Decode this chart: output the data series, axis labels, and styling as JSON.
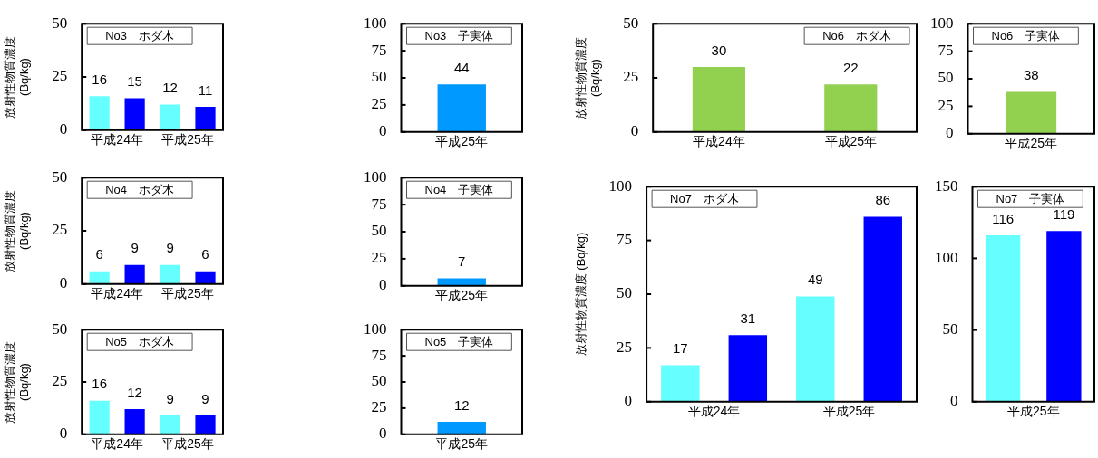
{
  "chart_data": [
    {
      "type": "bar",
      "title": "No3　ホダ木",
      "ylabel": "放射性物質濃度\n(Bq/kg)",
      "categories": [
        "平成24年",
        "平成25年"
      ],
      "series": [
        {
          "color": "#66ffff",
          "values": [
            16,
            12
          ]
        },
        {
          "color": "#0000ff",
          "values": [
            15,
            11
          ]
        }
      ],
      "ylim": [
        0,
        50
      ],
      "yticks": [
        0,
        25,
        50
      ],
      "data_labels": true,
      "grid": false,
      "legend": false
    },
    {
      "type": "bar",
      "title": "No3　子実体",
      "categories": [
        "平成25年"
      ],
      "series": [
        {
          "color": "#0099ff",
          "values": [
            44
          ]
        }
      ],
      "ylim": [
        0,
        100
      ],
      "yticks": [
        0,
        25,
        50,
        75,
        100
      ],
      "data_labels": true,
      "grid": false,
      "legend": false
    },
    {
      "type": "bar",
      "title": "No6　ホダ木",
      "ylabel": "放射性物質濃度\n(Bq/kg)",
      "categories": [
        "平成24年",
        "平成25年"
      ],
      "series": [
        {
          "color": "#92d050",
          "values": [
            30,
            22
          ]
        }
      ],
      "ylim": [
        0,
        50
      ],
      "yticks": [
        0,
        25,
        50
      ],
      "data_labels": true,
      "grid": false,
      "legend": false
    },
    {
      "type": "bar",
      "title": "No6　子実体",
      "categories": [
        "平成25年"
      ],
      "series": [
        {
          "color": "#92d050",
          "values": [
            38
          ]
        }
      ],
      "ylim": [
        0,
        100
      ],
      "yticks": [
        0,
        25,
        50,
        75,
        100
      ],
      "data_labels": true,
      "grid": false,
      "legend": false
    },
    {
      "type": "bar",
      "title": "No4　ホダ木",
      "ylabel": "放射性物質濃度\n(Bq/kg)",
      "categories": [
        "平成24年",
        "平成25年"
      ],
      "series": [
        {
          "color": "#66ffff",
          "values": [
            6,
            9
          ]
        },
        {
          "color": "#0000ff",
          "values": [
            9,
            6
          ]
        }
      ],
      "ylim": [
        0,
        50
      ],
      "yticks": [
        0,
        25,
        50
      ],
      "data_labels": true,
      "grid": false,
      "legend": false
    },
    {
      "type": "bar",
      "title": "No4　子実体",
      "categories": [
        "平成25年"
      ],
      "series": [
        {
          "color": "#0099ff",
          "values": [
            7
          ]
        }
      ],
      "ylim": [
        0,
        100
      ],
      "yticks": [
        0,
        25,
        50,
        75,
        100
      ],
      "data_labels": true,
      "grid": false,
      "legend": false
    },
    {
      "type": "bar",
      "title": "No7　ホダ木",
      "ylabel": "放射性物質濃度 (Bq/kg)",
      "categories": [
        "平成24年",
        "平成25年"
      ],
      "series": [
        {
          "color": "#66ffff",
          "values": [
            17,
            49
          ]
        },
        {
          "color": "#0000ff",
          "values": [
            31,
            86
          ]
        }
      ],
      "ylim": [
        0,
        100
      ],
      "yticks": [
        0,
        25,
        50,
        75,
        100
      ],
      "data_labels": true,
      "grid": false,
      "legend": false
    },
    {
      "type": "bar",
      "title": "No7　子実体",
      "categories": [
        "平成25年"
      ],
      "series": [
        {
          "color": "#66ffff",
          "values": [
            116
          ]
        },
        {
          "color": "#0000ff",
          "values": [
            119
          ]
        }
      ],
      "ylim": [
        0,
        150
      ],
      "yticks": [
        0,
        50,
        100,
        150
      ],
      "data_labels": true,
      "grid": false,
      "legend": false
    },
    {
      "type": "bar",
      "title": "No5　ホダ木",
      "ylabel": "放射性物質濃度\n(Bq/kg)",
      "categories": [
        "平成24年",
        "平成25年"
      ],
      "series": [
        {
          "color": "#66ffff",
          "values": [
            16,
            9
          ]
        },
        {
          "color": "#0000ff",
          "values": [
            12,
            9
          ]
        }
      ],
      "ylim": [
        0,
        50
      ],
      "yticks": [
        0,
        25,
        50
      ],
      "data_labels": true,
      "grid": false,
      "legend": false
    },
    {
      "type": "bar",
      "title": "No5　子実体",
      "categories": [
        "平成25年"
      ],
      "series": [
        {
          "color": "#0099ff",
          "values": [
            12
          ]
        }
      ],
      "ylim": [
        0,
        100
      ],
      "yticks": [
        0,
        25,
        50,
        75,
        100
      ],
      "data_labels": true,
      "grid": false,
      "legend": false
    }
  ]
}
